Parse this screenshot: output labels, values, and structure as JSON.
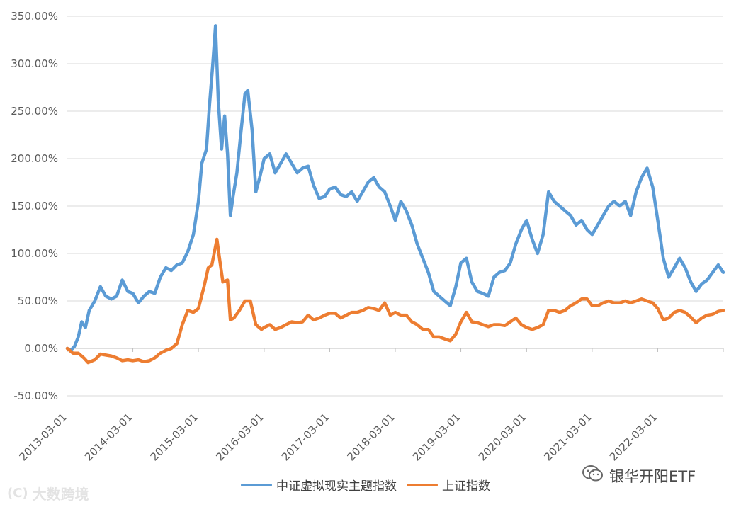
{
  "chart_data": {
    "type": "line",
    "title": "",
    "xlabel": "",
    "ylabel": "",
    "y_unit": "percent",
    "ylim": [
      -50,
      350
    ],
    "yticks": [
      -50,
      0,
      50,
      100,
      150,
      200,
      250,
      300,
      350
    ],
    "ytick_labels": [
      "-50.00%",
      "0.00%",
      "50.00%",
      "100.00%",
      "150.00%",
      "200.00%",
      "250.00%",
      "300.00%",
      "350.00%"
    ],
    "xlim": [
      "2013-03-01",
      "2023-03-01"
    ],
    "xticks": [
      "2013-03-01",
      "2014-03-01",
      "2015-03-01",
      "2016-03-01",
      "2017-03-01",
      "2018-03-01",
      "2019-03-01",
      "2020-03-01",
      "2021-03-01",
      "2022-03-01"
    ],
    "grid": "horizontal",
    "legend_position": "bottom",
    "series": [
      {
        "name": "中证虚拟现实主题指数",
        "color": "#5b9bd5",
        "points": [
          [
            "2013-03-01",
            0
          ],
          [
            "2013-03-20",
            -2
          ],
          [
            "2013-04-10",
            2
          ],
          [
            "2013-05-01",
            12
          ],
          [
            "2013-05-20",
            28
          ],
          [
            "2013-06-10",
            22
          ],
          [
            "2013-07-01",
            40
          ],
          [
            "2013-08-01",
            50
          ],
          [
            "2013-09-01",
            65
          ],
          [
            "2013-10-01",
            55
          ],
          [
            "2013-11-01",
            52
          ],
          [
            "2013-12-01",
            55
          ],
          [
            "2014-01-01",
            72
          ],
          [
            "2014-02-01",
            60
          ],
          [
            "2014-03-01",
            58
          ],
          [
            "2014-04-01",
            48
          ],
          [
            "2014-05-01",
            55
          ],
          [
            "2014-06-01",
            60
          ],
          [
            "2014-07-01",
            58
          ],
          [
            "2014-08-01",
            75
          ],
          [
            "2014-09-01",
            85
          ],
          [
            "2014-10-01",
            82
          ],
          [
            "2014-11-01",
            88
          ],
          [
            "2014-12-01",
            90
          ],
          [
            "2015-01-01",
            102
          ],
          [
            "2015-02-01",
            120
          ],
          [
            "2015-03-01",
            155
          ],
          [
            "2015-03-20",
            195
          ],
          [
            "2015-04-15",
            210
          ],
          [
            "2015-05-01",
            255
          ],
          [
            "2015-05-20",
            300
          ],
          [
            "2015-06-04",
            340
          ],
          [
            "2015-06-20",
            260
          ],
          [
            "2015-07-08",
            210
          ],
          [
            "2015-07-25",
            245
          ],
          [
            "2015-08-10",
            205
          ],
          [
            "2015-08-26",
            140
          ],
          [
            "2015-09-10",
            160
          ],
          [
            "2015-10-01",
            185
          ],
          [
            "2015-10-25",
            230
          ],
          [
            "2015-11-15",
            268
          ],
          [
            "2015-12-01",
            272
          ],
          [
            "2015-12-25",
            230
          ],
          [
            "2016-01-15",
            165
          ],
          [
            "2016-02-05",
            180
          ],
          [
            "2016-03-01",
            200
          ],
          [
            "2016-04-01",
            205
          ],
          [
            "2016-05-01",
            185
          ],
          [
            "2016-06-01",
            195
          ],
          [
            "2016-07-01",
            205
          ],
          [
            "2016-08-01",
            195
          ],
          [
            "2016-09-01",
            185
          ],
          [
            "2016-10-01",
            190
          ],
          [
            "2016-11-01",
            192
          ],
          [
            "2016-12-01",
            172
          ],
          [
            "2017-01-01",
            158
          ],
          [
            "2017-02-01",
            160
          ],
          [
            "2017-03-01",
            168
          ],
          [
            "2017-04-01",
            170
          ],
          [
            "2017-05-01",
            162
          ],
          [
            "2017-06-01",
            160
          ],
          [
            "2017-07-01",
            165
          ],
          [
            "2017-08-01",
            155
          ],
          [
            "2017-09-01",
            165
          ],
          [
            "2017-10-01",
            175
          ],
          [
            "2017-11-01",
            180
          ],
          [
            "2017-12-01",
            170
          ],
          [
            "2018-01-01",
            165
          ],
          [
            "2018-02-01",
            150
          ],
          [
            "2018-03-01",
            135
          ],
          [
            "2018-04-01",
            155
          ],
          [
            "2018-05-01",
            145
          ],
          [
            "2018-06-01",
            130
          ],
          [
            "2018-07-01",
            110
          ],
          [
            "2018-08-01",
            95
          ],
          [
            "2018-09-01",
            80
          ],
          [
            "2018-10-01",
            60
          ],
          [
            "2018-11-01",
            55
          ],
          [
            "2018-12-01",
            50
          ],
          [
            "2019-01-01",
            45
          ],
          [
            "2019-02-01",
            65
          ],
          [
            "2019-03-01",
            90
          ],
          [
            "2019-04-01",
            95
          ],
          [
            "2019-05-01",
            70
          ],
          [
            "2019-06-01",
            60
          ],
          [
            "2019-07-01",
            58
          ],
          [
            "2019-08-01",
            55
          ],
          [
            "2019-09-01",
            75
          ],
          [
            "2019-10-01",
            80
          ],
          [
            "2019-11-01",
            82
          ],
          [
            "2019-12-01",
            90
          ],
          [
            "2020-01-01",
            110
          ],
          [
            "2020-02-01",
            125
          ],
          [
            "2020-03-01",
            135
          ],
          [
            "2020-04-01",
            115
          ],
          [
            "2020-05-01",
            100
          ],
          [
            "2020-06-01",
            120
          ],
          [
            "2020-07-01",
            165
          ],
          [
            "2020-08-01",
            155
          ],
          [
            "2020-09-01",
            150
          ],
          [
            "2020-10-01",
            145
          ],
          [
            "2020-11-01",
            140
          ],
          [
            "2020-12-01",
            130
          ],
          [
            "2021-01-01",
            135
          ],
          [
            "2021-02-01",
            125
          ],
          [
            "2021-03-01",
            120
          ],
          [
            "2021-04-01",
            130
          ],
          [
            "2021-05-01",
            140
          ],
          [
            "2021-06-01",
            150
          ],
          [
            "2021-07-01",
            155
          ],
          [
            "2021-08-01",
            150
          ],
          [
            "2021-09-01",
            155
          ],
          [
            "2021-10-01",
            140
          ],
          [
            "2021-11-01",
            165
          ],
          [
            "2021-12-01",
            180
          ],
          [
            "2022-01-01",
            190
          ],
          [
            "2022-02-01",
            170
          ],
          [
            "2022-03-01",
            135
          ],
          [
            "2022-04-01",
            95
          ],
          [
            "2022-05-01",
            75
          ],
          [
            "2022-06-01",
            85
          ],
          [
            "2022-07-01",
            95
          ],
          [
            "2022-08-01",
            85
          ],
          [
            "2022-09-01",
            70
          ],
          [
            "2022-10-01",
            60
          ],
          [
            "2022-11-01",
            68
          ],
          [
            "2022-12-01",
            72
          ],
          [
            "2023-01-01",
            80
          ],
          [
            "2023-02-01",
            88
          ],
          [
            "2023-03-01",
            80
          ]
        ]
      },
      {
        "name": "上证指数",
        "color": "#ed7d31",
        "points": [
          [
            "2013-03-01",
            0
          ],
          [
            "2013-04-01",
            -5
          ],
          [
            "2013-05-01",
            -5
          ],
          [
            "2013-06-01",
            -10
          ],
          [
            "2013-06-25",
            -15
          ],
          [
            "2013-08-01",
            -12
          ],
          [
            "2013-09-01",
            -6
          ],
          [
            "2013-10-01",
            -7
          ],
          [
            "2013-11-01",
            -8
          ],
          [
            "2013-12-01",
            -10
          ],
          [
            "2014-01-01",
            -13
          ],
          [
            "2014-02-01",
            -12
          ],
          [
            "2014-03-01",
            -13
          ],
          [
            "2014-04-01",
            -12
          ],
          [
            "2014-05-01",
            -14
          ],
          [
            "2014-06-01",
            -13
          ],
          [
            "2014-07-01",
            -10
          ],
          [
            "2014-08-01",
            -5
          ],
          [
            "2014-09-01",
            -2
          ],
          [
            "2014-10-01",
            0
          ],
          [
            "2014-11-01",
            5
          ],
          [
            "2014-12-01",
            25
          ],
          [
            "2015-01-01",
            40
          ],
          [
            "2015-02-01",
            38
          ],
          [
            "2015-03-01",
            42
          ],
          [
            "2015-04-01",
            65
          ],
          [
            "2015-04-25",
            85
          ],
          [
            "2015-05-15",
            88
          ],
          [
            "2015-06-12",
            115
          ],
          [
            "2015-06-30",
            90
          ],
          [
            "2015-07-15",
            70
          ],
          [
            "2015-08-10",
            72
          ],
          [
            "2015-08-26",
            30
          ],
          [
            "2015-09-15",
            32
          ],
          [
            "2015-10-15",
            40
          ],
          [
            "2015-11-15",
            50
          ],
          [
            "2015-12-15",
            50
          ],
          [
            "2016-01-15",
            25
          ],
          [
            "2016-02-15",
            20
          ],
          [
            "2016-03-01",
            22
          ],
          [
            "2016-04-01",
            25
          ],
          [
            "2016-05-01",
            20
          ],
          [
            "2016-06-01",
            22
          ],
          [
            "2016-07-01",
            25
          ],
          [
            "2016-08-01",
            28
          ],
          [
            "2016-09-01",
            27
          ],
          [
            "2016-10-01",
            28
          ],
          [
            "2016-11-01",
            35
          ],
          [
            "2016-12-01",
            30
          ],
          [
            "2017-01-01",
            32
          ],
          [
            "2017-02-01",
            35
          ],
          [
            "2017-03-01",
            37
          ],
          [
            "2017-04-01",
            37
          ],
          [
            "2017-05-01",
            32
          ],
          [
            "2017-06-01",
            35
          ],
          [
            "2017-07-01",
            38
          ],
          [
            "2017-08-01",
            38
          ],
          [
            "2017-09-01",
            40
          ],
          [
            "2017-10-01",
            43
          ],
          [
            "2017-11-01",
            42
          ],
          [
            "2017-12-01",
            40
          ],
          [
            "2018-01-01",
            48
          ],
          [
            "2018-02-01",
            35
          ],
          [
            "2018-03-01",
            38
          ],
          [
            "2018-04-01",
            35
          ],
          [
            "2018-05-01",
            35
          ],
          [
            "2018-06-01",
            28
          ],
          [
            "2018-07-01",
            25
          ],
          [
            "2018-08-01",
            20
          ],
          [
            "2018-09-01",
            20
          ],
          [
            "2018-10-01",
            12
          ],
          [
            "2018-11-01",
            12
          ],
          [
            "2018-12-01",
            10
          ],
          [
            "2019-01-01",
            8
          ],
          [
            "2019-02-01",
            15
          ],
          [
            "2019-03-01",
            28
          ],
          [
            "2019-04-01",
            38
          ],
          [
            "2019-05-01",
            28
          ],
          [
            "2019-06-01",
            27
          ],
          [
            "2019-07-01",
            25
          ],
          [
            "2019-08-01",
            23
          ],
          [
            "2019-09-01",
            25
          ],
          [
            "2019-10-01",
            25
          ],
          [
            "2019-11-01",
            24
          ],
          [
            "2019-12-01",
            28
          ],
          [
            "2020-01-01",
            32
          ],
          [
            "2020-02-01",
            25
          ],
          [
            "2020-03-01",
            22
          ],
          [
            "2020-04-01",
            20
          ],
          [
            "2020-05-01",
            22
          ],
          [
            "2020-06-01",
            25
          ],
          [
            "2020-07-01",
            40
          ],
          [
            "2020-08-01",
            40
          ],
          [
            "2020-09-01",
            38
          ],
          [
            "2020-10-01",
            40
          ],
          [
            "2020-11-01",
            45
          ],
          [
            "2020-12-01",
            48
          ],
          [
            "2021-01-01",
            52
          ],
          [
            "2021-02-01",
            52
          ],
          [
            "2021-03-01",
            45
          ],
          [
            "2021-04-01",
            45
          ],
          [
            "2021-05-01",
            48
          ],
          [
            "2021-06-01",
            50
          ],
          [
            "2021-07-01",
            48
          ],
          [
            "2021-08-01",
            48
          ],
          [
            "2021-09-01",
            50
          ],
          [
            "2021-10-01",
            48
          ],
          [
            "2021-11-01",
            50
          ],
          [
            "2021-12-01",
            52
          ],
          [
            "2022-01-01",
            50
          ],
          [
            "2022-02-01",
            48
          ],
          [
            "2022-03-01",
            42
          ],
          [
            "2022-04-01",
            30
          ],
          [
            "2022-05-01",
            32
          ],
          [
            "2022-06-01",
            38
          ],
          [
            "2022-07-01",
            40
          ],
          [
            "2022-08-01",
            38
          ],
          [
            "2022-09-01",
            33
          ],
          [
            "2022-10-01",
            27
          ],
          [
            "2022-11-01",
            32
          ],
          [
            "2022-12-01",
            35
          ],
          [
            "2023-01-01",
            36
          ],
          [
            "2023-02-01",
            39
          ],
          [
            "2023-03-01",
            40
          ]
        ]
      }
    ]
  },
  "legend": {
    "items": [
      {
        "label": "中证虚拟现实主题指数",
        "color": "#5b9bd5"
      },
      {
        "label": "上证指数",
        "color": "#ed7d31"
      }
    ]
  },
  "watermarks": {
    "left_text": "大数跨境",
    "left_logo": "(C)",
    "right_text": "银华开阳ETF"
  }
}
